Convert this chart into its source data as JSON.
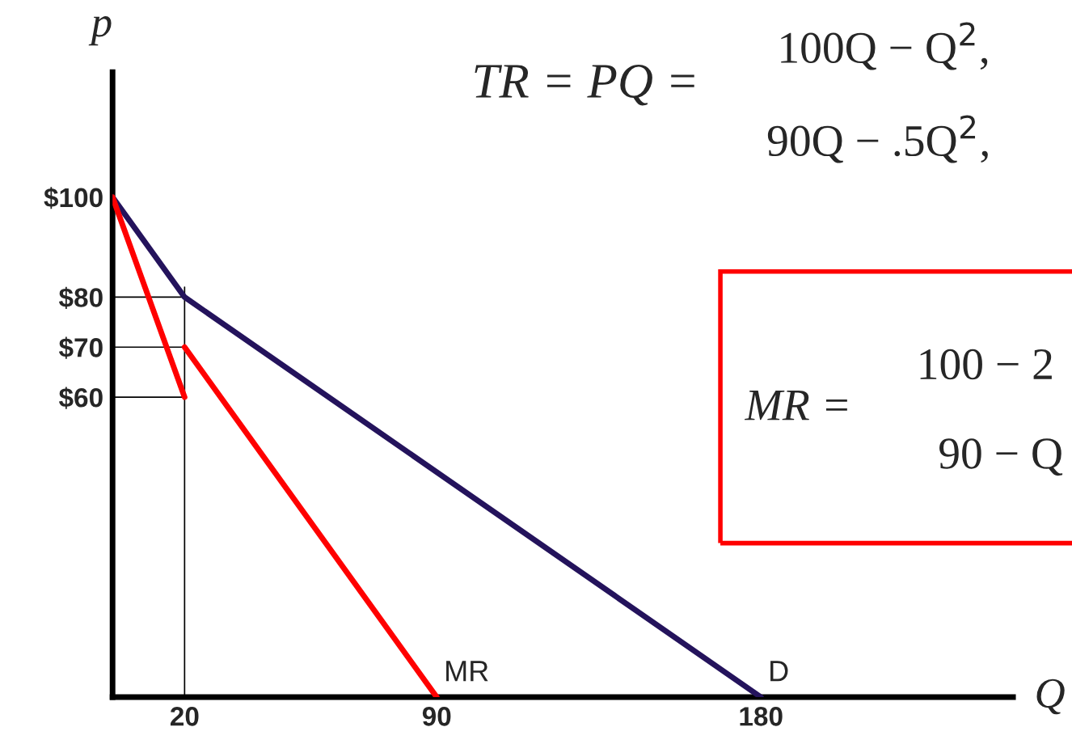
{
  "chart_data": {
    "type": "line",
    "xlabel": "Q",
    "ylabel": "p",
    "xlim": [
      0,
      250
    ],
    "ylim": [
      0,
      125
    ],
    "xticks": [
      20,
      90,
      180
    ],
    "yticks": [
      {
        "value": 60,
        "label": "$60"
      },
      {
        "value": 70,
        "label": "$70"
      },
      {
        "value": 80,
        "label": "$80"
      },
      {
        "value": 100,
        "label": "$100"
      }
    ],
    "grid": false,
    "marker": "none",
    "line_style": "solid",
    "series": [
      {
        "name": "D",
        "color": "#24135c",
        "x": [
          0,
          20,
          180
        ],
        "values": [
          100,
          80,
          0
        ]
      },
      {
        "name": "MR",
        "color": "#ff0000",
        "x": [
          0,
          20,
          null,
          20,
          90
        ],
        "values": [
          100,
          60,
          null,
          70,
          0
        ]
      },
      {
        "color": "#000000",
        "x": [
          0,
          20
        ],
        "values": [
          80,
          80
        ]
      },
      {
        "color": "#000000",
        "x": [
          0,
          20
        ],
        "values": [
          70,
          70
        ]
      },
      {
        "color": "#000000",
        "x": [
          0,
          20
        ],
        "values": [
          60,
          60
        ]
      },
      {
        "color": "#000000",
        "x": [
          20,
          20
        ],
        "values": [
          0,
          82
        ]
      }
    ],
    "annotations": [
      "TR = PQ =",
      "100Q − Q$^{2}$,",
      "90Q − .5Q$^{2}$,",
      "MR =",
      "100 − 2",
      "90 − Q"
    ]
  }
}
